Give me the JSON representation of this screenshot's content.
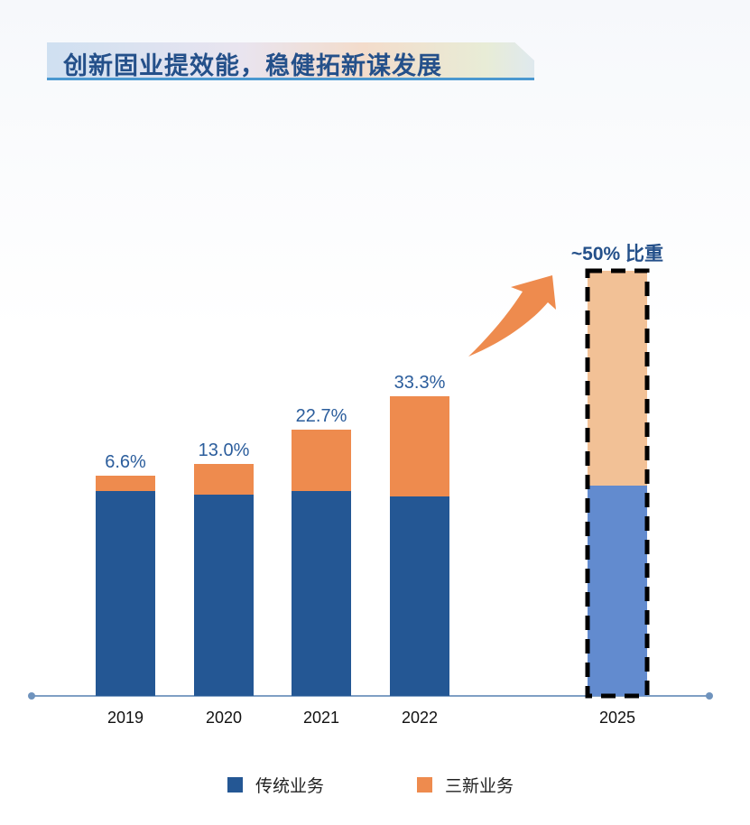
{
  "title": "创新固业提效能，稳健拓新谋发展",
  "chart_data": {
    "type": "bar",
    "stacked": true,
    "categories": [
      "2019",
      "2020",
      "2021",
      "2022",
      "2025"
    ],
    "series": [
      {
        "name": "传统业务",
        "color": "#245794",
        "projection_color": "#628bcf"
      },
      {
        "name": "三新业务",
        "color": "#ee8b4e",
        "projection_color": "#f2c196",
        "share_percent": [
          6.6,
          13.0,
          22.7,
          33.3,
          50
        ]
      }
    ],
    "data_labels": [
      "6.6%",
      "13.0%",
      "22.7%",
      "33.3%",
      "~50% 比重"
    ],
    "projection_category": "2025",
    "projection_style": "dashed-outline",
    "annotation_arrow_color": "#ee8b4e",
    "legend_position": "bottom",
    "grid": false
  }
}
